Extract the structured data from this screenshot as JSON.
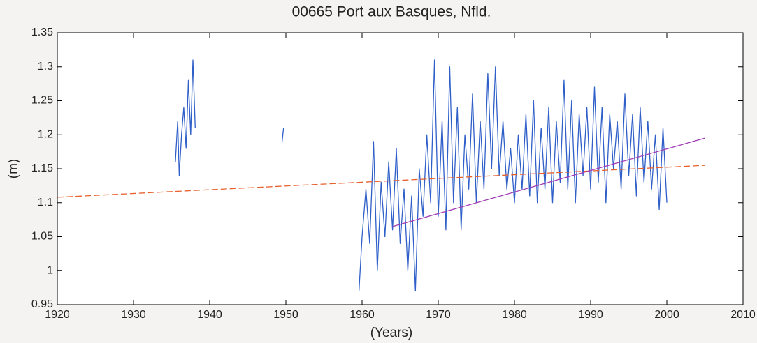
{
  "chart_data": {
    "type": "line",
    "title": "00665 Port aux Basques, Nfld.",
    "xlabel": "(Years)",
    "ylabel": "(m)",
    "xlim": [
      1920,
      2010
    ],
    "xticks": [
      1920,
      1930,
      1940,
      1950,
      1960,
      1970,
      1980,
      1990,
      2000,
      2010
    ],
    "ylim": [
      0.95,
      1.35
    ],
    "yticks": [
      0.95,
      1,
      1.05,
      1.1,
      1.15,
      1.2,
      1.25,
      1.3,
      1.35
    ],
    "grid": false,
    "series": [
      {
        "color": "#2f5fc8",
        "style": "solid",
        "x": [
          1935.5,
          1935.8,
          1936.0,
          1936.3,
          1936.6,
          1936.9,
          1937.2,
          1937.5,
          1937.8,
          1938.1,
          1939,
          1949.5,
          1949.7,
          1955,
          1959.6,
          1960.0,
          1960.5,
          1961.0,
          1961.5,
          1962.0,
          1962.5,
          1963.0,
          1963.5,
          1964.0,
          1964.5,
          1965.0,
          1965.5,
          1966.0,
          1966.5,
          1967.0,
          1967.5,
          1968.0,
          1968.5,
          1969.0,
          1969.5,
          1970.0,
          1970.5,
          1971.0,
          1971.5,
          1972.0,
          1972.5,
          1973.0,
          1973.5,
          1974.0,
          1974.5,
          1975.0,
          1975.5,
          1976.0,
          1976.5,
          1977.0,
          1977.5,
          1978.0,
          1978.5,
          1979.0,
          1979.5,
          1980.0,
          1980.5,
          1981.0,
          1981.5,
          1982.0,
          1982.5,
          1983.0,
          1983.5,
          1984.0,
          1984.5,
          1985.0,
          1985.5,
          1986.0,
          1986.5,
          1987.0,
          1987.5,
          1988.0,
          1988.5,
          1989.0,
          1989.5,
          1990.0,
          1990.5,
          1991.0,
          1991.5,
          1992.0,
          1992.5,
          1993.0,
          1993.5,
          1994.0,
          1994.5,
          1995.0,
          1995.5,
          1996.0,
          1996.5,
          1997.0,
          1997.5,
          1998.0,
          1998.5,
          1999.0,
          1999.5,
          2000.0
        ],
        "values": [
          1.16,
          1.22,
          1.14,
          1.2,
          1.24,
          1.18,
          1.28,
          1.2,
          1.31,
          1.21,
          null,
          1.19,
          1.21,
          null,
          0.97,
          1.05,
          1.12,
          1.04,
          1.19,
          1.0,
          1.13,
          1.05,
          1.16,
          1.06,
          1.18,
          1.04,
          1.12,
          1.0,
          1.11,
          0.97,
          1.15,
          1.08,
          1.2,
          1.1,
          1.31,
          1.08,
          1.22,
          1.06,
          1.3,
          1.1,
          1.24,
          1.06,
          1.2,
          1.12,
          1.26,
          1.1,
          1.22,
          1.12,
          1.29,
          1.15,
          1.3,
          1.14,
          1.22,
          1.12,
          1.18,
          1.1,
          1.2,
          1.12,
          1.23,
          1.11,
          1.25,
          1.1,
          1.21,
          1.12,
          1.24,
          1.1,
          1.22,
          1.13,
          1.28,
          1.12,
          1.25,
          1.1,
          1.23,
          1.14,
          1.24,
          1.12,
          1.27,
          1.13,
          1.24,
          1.1,
          1.23,
          1.15,
          1.22,
          1.12,
          1.26,
          1.14,
          1.23,
          1.11,
          1.24,
          1.13,
          1.22,
          1.12,
          1.2,
          1.09,
          1.21,
          1.1
        ]
      },
      {
        "color": "#e8602c",
        "style": "dashed",
        "x": [
          1920,
          2005
        ],
        "values": [
          1.108,
          1.155
        ]
      },
      {
        "color": "#a03cb4",
        "style": "solid",
        "x": [
          1964,
          2005
        ],
        "values": [
          1.065,
          1.195
        ]
      }
    ]
  }
}
